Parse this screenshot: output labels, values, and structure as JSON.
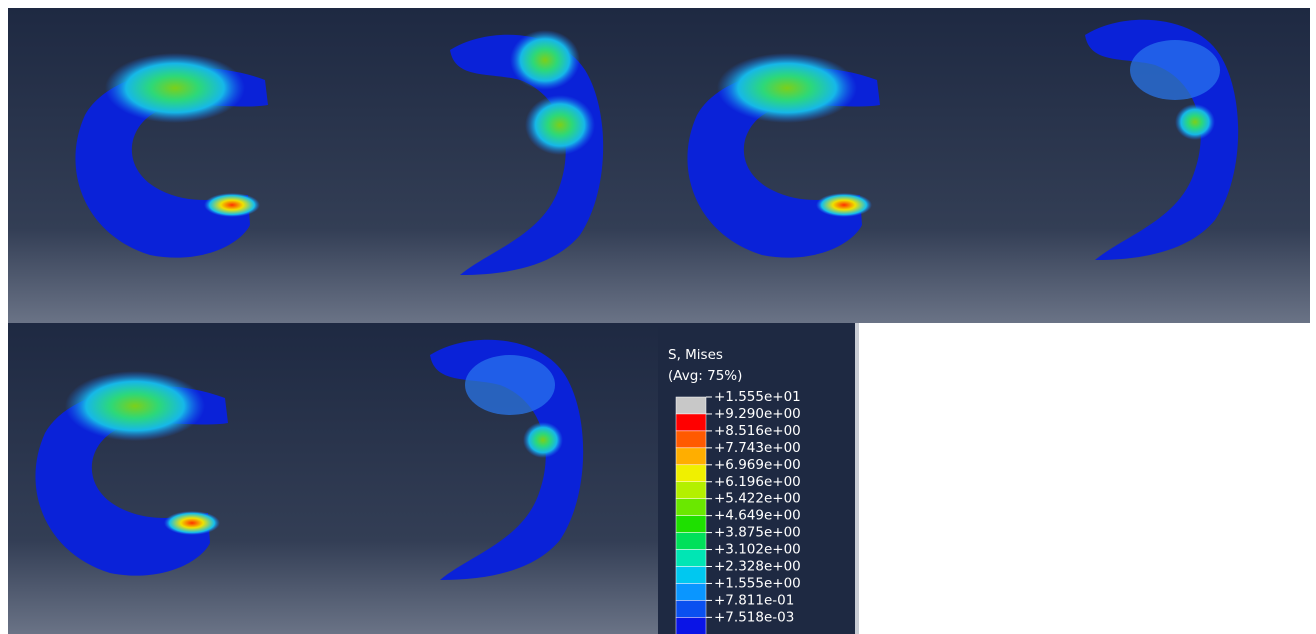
{
  "legend": {
    "title": "S, Mises",
    "subtitle": "(Avg: 75%)",
    "labels": [
      "+1.555e+01",
      "+9.290e+00",
      "+8.516e+00",
      "+7.743e+00",
      "+6.969e+00",
      "+6.196e+00",
      "+5.422e+00",
      "+4.649e+00",
      "+3.875e+00",
      "+3.102e+00",
      "+2.328e+00",
      "+1.555e+00",
      "+7.811e-01",
      "+7.518e-03"
    ],
    "colors": [
      "#c8c8c8",
      "#ff0000",
      "#ff5a00",
      "#ffae00",
      "#f0f000",
      "#b4f000",
      "#6ae800",
      "#1ee000",
      "#00e05a",
      "#00e6b4",
      "#00c8f0",
      "#0a96ff",
      "#0a50f0",
      "#0a14e6"
    ]
  }
}
